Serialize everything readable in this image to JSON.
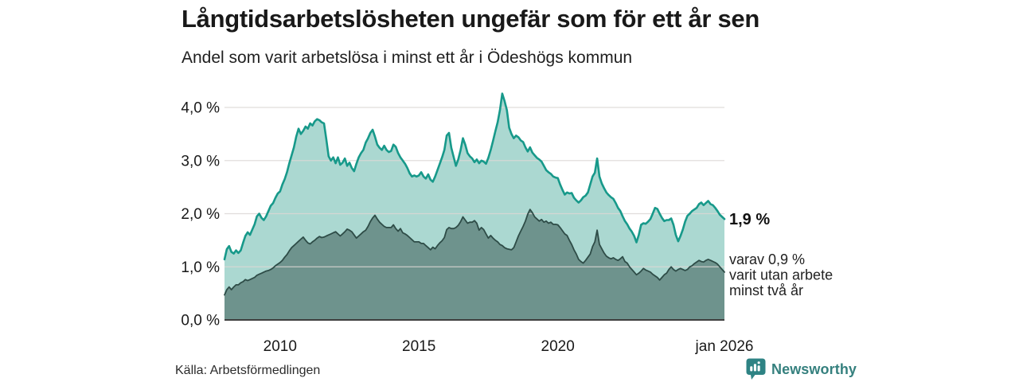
{
  "header": {
    "title": "Långtidsarbetslösheten ungefär som för ett år sen",
    "subtitle": "Andel som varit arbetslösa i minst ett år i Ödeshögs kommun"
  },
  "footer": {
    "source": "Källa: Arbetsförmedlingen",
    "brand": "Newsworthy"
  },
  "colors": {
    "accent_teal_line": "#17998a",
    "light_fill": "#abd8d1",
    "dark_fill": "#6e938d",
    "dark_line": "#2e4c47",
    "gridline": "#dcd7d5",
    "axis_line": "#3f3f3f",
    "brand_teal": "#35807e"
  },
  "chart_data": {
    "type": "area",
    "title": "Långtidsarbetslösheten ungefär som för ett år sen",
    "subtitle": "Andel som varit arbetslösa i minst ett år i Ödeshögs kommun",
    "unit": "%",
    "x_start": "2008-01",
    "x_end": "2026-01",
    "points_per_year": 12,
    "grid": true,
    "ylim": [
      0,
      4.3
    ],
    "y_ticks": [
      {
        "label": "0,0 %",
        "value": 0
      },
      {
        "label": "1,0 %",
        "value": 1
      },
      {
        "label": "2,0 %",
        "value": 2
      },
      {
        "label": "3,0 %",
        "value": 3
      },
      {
        "label": "4,0 %",
        "value": 4
      }
    ],
    "x_ticks": [
      {
        "label": "2010",
        "month_index": 24
      },
      {
        "label": "2015",
        "month_index": 84
      },
      {
        "label": "2020",
        "month_index": 144
      },
      {
        "label": "jan 2026",
        "month_index": 216
      }
    ],
    "series": [
      {
        "name": "Arbetslösa minst ett år",
        "line_color": "#17998a",
        "fill_color": "#abd8d1",
        "line_width": 2.6,
        "end_value_label": "1,9 %",
        "values": [
          1.14,
          1.33,
          1.39,
          1.28,
          1.25,
          1.31,
          1.26,
          1.31,
          1.45,
          1.58,
          1.65,
          1.6,
          1.7,
          1.8,
          1.95,
          2.0,
          1.92,
          1.88,
          1.95,
          2.05,
          2.15,
          2.2,
          2.3,
          2.38,
          2.42,
          2.55,
          2.65,
          2.78,
          2.95,
          3.1,
          3.25,
          3.45,
          3.6,
          3.5,
          3.56,
          3.64,
          3.6,
          3.7,
          3.66,
          3.74,
          3.78,
          3.76,
          3.72,
          3.7,
          3.4,
          3.08,
          3.0,
          3.06,
          2.95,
          3.06,
          2.92,
          2.96,
          3.04,
          2.9,
          2.96,
          2.86,
          2.8,
          2.94,
          3.06,
          3.14,
          3.2,
          3.34,
          3.42,
          3.52,
          3.58,
          3.45,
          3.3,
          3.24,
          3.2,
          3.28,
          3.2,
          3.16,
          3.18,
          3.3,
          3.26,
          3.14,
          3.06,
          3.0,
          2.94,
          2.86,
          2.76,
          2.7,
          2.72,
          2.7,
          2.72,
          2.78,
          2.7,
          2.66,
          2.74,
          2.64,
          2.6,
          2.7,
          2.82,
          2.94,
          3.06,
          3.2,
          3.47,
          3.52,
          3.24,
          3.07,
          2.9,
          3.02,
          3.2,
          3.42,
          3.3,
          3.14,
          3.08,
          3.04,
          2.97,
          3.02,
          2.95,
          3.0,
          2.98,
          2.94,
          3.05,
          3.2,
          3.37,
          3.55,
          3.72,
          3.95,
          4.26,
          4.12,
          3.95,
          3.62,
          3.5,
          3.42,
          3.47,
          3.44,
          3.38,
          3.35,
          3.25,
          3.17,
          3.25,
          3.15,
          3.1,
          3.05,
          3.02,
          2.98,
          2.9,
          2.82,
          2.78,
          2.75,
          2.7,
          2.68,
          2.67,
          2.55,
          2.45,
          2.36,
          2.4,
          2.38,
          2.39,
          2.3,
          2.25,
          2.21,
          2.25,
          2.31,
          2.34,
          2.4,
          2.55,
          2.7,
          2.77,
          3.04,
          2.7,
          2.57,
          2.48,
          2.4,
          2.35,
          2.31,
          2.28,
          2.2,
          2.11,
          2.05,
          1.95,
          1.86,
          1.8,
          1.72,
          1.66,
          1.58,
          1.46,
          1.6,
          1.79,
          1.82,
          1.81,
          1.85,
          1.9,
          2.0,
          2.11,
          2.09,
          2.0,
          1.92,
          1.86,
          1.88,
          1.88,
          1.91,
          1.79,
          1.6,
          1.48,
          1.58,
          1.7,
          1.85,
          1.96,
          2.0,
          2.05,
          2.08,
          2.11,
          2.18,
          2.21,
          2.16,
          2.2,
          2.24,
          2.18,
          2.16,
          2.11,
          2.05,
          1.98,
          1.94,
          1.9
        ]
      },
      {
        "name": "varav utan arbete minst två år",
        "line_color": "#2e4c47",
        "fill_color": "#6e938d",
        "line_width": 1.8,
        "end_value_label_lines": [
          "varav 0,9 %",
          "varit utan arbete",
          "minst två år"
        ],
        "values": [
          0.47,
          0.57,
          0.62,
          0.57,
          0.62,
          0.66,
          0.66,
          0.7,
          0.72,
          0.76,
          0.74,
          0.76,
          0.78,
          0.8,
          0.84,
          0.86,
          0.88,
          0.9,
          0.92,
          0.93,
          0.95,
          0.98,
          1.02,
          1.05,
          1.08,
          1.12,
          1.18,
          1.23,
          1.3,
          1.36,
          1.4,
          1.44,
          1.48,
          1.52,
          1.56,
          1.5,
          1.45,
          1.43,
          1.47,
          1.5,
          1.54,
          1.57,
          1.55,
          1.56,
          1.58,
          1.6,
          1.62,
          1.64,
          1.66,
          1.62,
          1.58,
          1.62,
          1.66,
          1.71,
          1.69,
          1.66,
          1.6,
          1.54,
          1.58,
          1.62,
          1.66,
          1.69,
          1.76,
          1.85,
          1.92,
          1.97,
          1.9,
          1.84,
          1.8,
          1.76,
          1.74,
          1.74,
          1.74,
          1.79,
          1.72,
          1.67,
          1.72,
          1.64,
          1.62,
          1.59,
          1.55,
          1.51,
          1.47,
          1.47,
          1.47,
          1.44,
          1.44,
          1.4,
          1.36,
          1.32,
          1.37,
          1.34,
          1.4,
          1.45,
          1.49,
          1.55,
          1.7,
          1.74,
          1.72,
          1.72,
          1.74,
          1.78,
          1.85,
          1.94,
          1.88,
          1.82,
          1.84,
          1.84,
          1.87,
          1.82,
          1.69,
          1.74,
          1.7,
          1.62,
          1.54,
          1.59,
          1.54,
          1.5,
          1.47,
          1.42,
          1.4,
          1.36,
          1.34,
          1.33,
          1.32,
          1.36,
          1.47,
          1.58,
          1.67,
          1.76,
          1.86,
          1.99,
          2.08,
          2.02,
          1.94,
          1.9,
          1.86,
          1.89,
          1.84,
          1.86,
          1.82,
          1.84,
          1.8,
          1.8,
          1.79,
          1.74,
          1.68,
          1.62,
          1.59,
          1.5,
          1.42,
          1.32,
          1.24,
          1.14,
          1.1,
          1.07,
          1.12,
          1.18,
          1.24,
          1.38,
          1.47,
          1.69,
          1.42,
          1.34,
          1.26,
          1.2,
          1.17,
          1.15,
          1.17,
          1.14,
          1.12,
          1.15,
          1.19,
          1.1,
          1.07,
          1.0,
          0.95,
          0.9,
          0.85,
          0.88,
          0.92,
          0.97,
          0.94,
          0.92,
          0.9,
          0.86,
          0.83,
          0.8,
          0.75,
          0.8,
          0.85,
          0.88,
          0.95,
          1.0,
          0.95,
          0.92,
          0.95,
          0.97,
          0.95,
          0.93,
          0.95,
          1.0,
          1.02,
          1.06,
          1.09,
          1.12,
          1.1,
          1.09,
          1.12,
          1.14,
          1.12,
          1.1,
          1.08,
          1.05,
          1.0,
          0.95,
          0.9
        ]
      }
    ],
    "annotations": {
      "latest_total": "1,9 %",
      "latest_two_years_lines": [
        "varav 0,9 %",
        "varit utan arbete",
        "minst två år"
      ]
    },
    "legend_position": "none"
  }
}
